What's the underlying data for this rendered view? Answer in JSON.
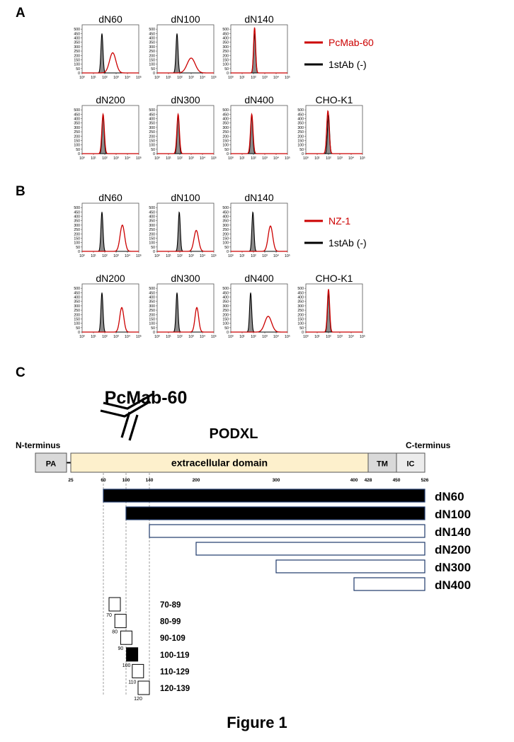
{
  "panels": {
    "A": {
      "letter": "A",
      "legend": [
        {
          "label": "PcMab-60",
          "color": "#cc0000"
        },
        {
          "label": "1stAb (-)",
          "color": "#000000"
        }
      ],
      "histograms": [
        {
          "title": "dN60",
          "control_peak_log": 1.75,
          "antibody_peak_log": 2.7,
          "antibody_height": 230,
          "antibody_width": 0.28
        },
        {
          "title": "dN100",
          "control_peak_log": 1.75,
          "antibody_peak_log": 3.0,
          "antibody_height": 170,
          "antibody_width": 0.35
        },
        {
          "title": "dN140",
          "control_peak_log": 2.1,
          "antibody_peak_log": 2.1,
          "antibody_height": 520,
          "antibody_width": 0.09
        },
        {
          "title": "dN200",
          "control_peak_log": 1.85,
          "antibody_peak_log": 1.85,
          "antibody_height": 450,
          "antibody_width": 0.11
        },
        {
          "title": "dN300",
          "control_peak_log": 1.85,
          "antibody_peak_log": 1.85,
          "antibody_height": 450,
          "antibody_width": 0.11
        },
        {
          "title": "dN400",
          "control_peak_log": 1.85,
          "antibody_peak_log": 1.85,
          "antibody_height": 450,
          "antibody_width": 0.11
        },
        {
          "title": "CHO-K1",
          "control_peak_log": 2.0,
          "antibody_peak_log": 1.95,
          "antibody_height": 490,
          "antibody_width": 0.11
        }
      ]
    },
    "B": {
      "letter": "B",
      "legend": [
        {
          "label": "NZ-1",
          "color": "#cc0000"
        },
        {
          "label": "1stAb (-)",
          "color": "#000000"
        }
      ],
      "histograms": [
        {
          "title": "dN60",
          "control_peak_log": 1.75,
          "antibody_peak_log": 3.55,
          "antibody_height": 300,
          "antibody_width": 0.2
        },
        {
          "title": "dN100",
          "control_peak_log": 1.95,
          "antibody_peak_log": 3.45,
          "antibody_height": 240,
          "antibody_width": 0.2
        },
        {
          "title": "dN140",
          "control_peak_log": 1.95,
          "antibody_peak_log": 3.5,
          "antibody_height": 290,
          "antibody_width": 0.2
        },
        {
          "title": "dN200",
          "control_peak_log": 1.75,
          "antibody_peak_log": 3.5,
          "antibody_height": 280,
          "antibody_width": 0.18
        },
        {
          "title": "dN300",
          "control_peak_log": 1.75,
          "antibody_peak_log": 3.5,
          "antibody_height": 280,
          "antibody_width": 0.16
        },
        {
          "title": "dN400",
          "control_peak_log": 1.75,
          "antibody_peak_log": 3.3,
          "antibody_height": 180,
          "antibody_width": 0.3
        },
        {
          "title": "CHO-K1",
          "control_peak_log": 2.0,
          "antibody_peak_log": 2.0,
          "antibody_height": 490,
          "antibody_width": 0.1
        }
      ]
    },
    "histogram_axis": {
      "y_ticks": [
        "0",
        "50",
        "100",
        "150",
        "200",
        "250",
        "300",
        "350",
        "400",
        "450",
        "500"
      ],
      "y_max": 550,
      "x_ticks": [
        "10⁰",
        "10¹",
        "10²",
        "10³",
        "10⁴",
        "10⁵"
      ],
      "x_range_log": [
        0,
        5
      ]
    },
    "C": {
      "letter": "C",
      "antibody_label": "PcMab-60",
      "protein_label": "PODXL",
      "n_terminus": "N-terminus",
      "c_terminus": "C-terminus",
      "domains": [
        {
          "label": "PA",
          "start": 1,
          "end": 25,
          "color": "#d9d9d9"
        },
        {
          "label": "extracellular domain",
          "start": 25,
          "end": 428,
          "color": "#fdf0cc"
        },
        {
          "label": "TM",
          "start": 428,
          "end": 450,
          "color": "#d9d9d9"
        },
        {
          "label": "IC",
          "start": 450,
          "end": 526,
          "color": "#ececec"
        }
      ],
      "position_ticks": [
        "25",
        "60",
        "100",
        "140",
        "200",
        "300",
        "400",
        "428",
        "450",
        "526"
      ],
      "constructs": [
        {
          "label": "dN60",
          "start": 60,
          "end": 526,
          "reactive": true
        },
        {
          "label": "dN100",
          "start": 100,
          "end": 526,
          "reactive": true
        },
        {
          "label": "dN140",
          "start": 140,
          "end": 526,
          "reactive": false
        },
        {
          "label": "dN200",
          "start": 200,
          "end": 526,
          "reactive": false
        },
        {
          "label": "dN300",
          "start": 300,
          "end": 526,
          "reactive": false
        },
        {
          "label": "dN400",
          "start": 400,
          "end": 526,
          "reactive": false
        }
      ],
      "peptides": [
        {
          "range": "70-89",
          "start": 70,
          "start_label": "70",
          "reactive": false
        },
        {
          "range": "80-99",
          "start": 80,
          "start_label": "80",
          "reactive": false
        },
        {
          "range": "90-109",
          "start": 90,
          "start_label": "90",
          "reactive": false
        },
        {
          "range": "100-119",
          "start": 100,
          "start_label": "100",
          "reactive": true
        },
        {
          "range": "110-129",
          "start": 110,
          "start_label": "110",
          "reactive": false
        },
        {
          "range": "120-139",
          "start": 120,
          "start_label": "120",
          "reactive": false
        }
      ]
    }
  },
  "figure_title": "Figure 1"
}
